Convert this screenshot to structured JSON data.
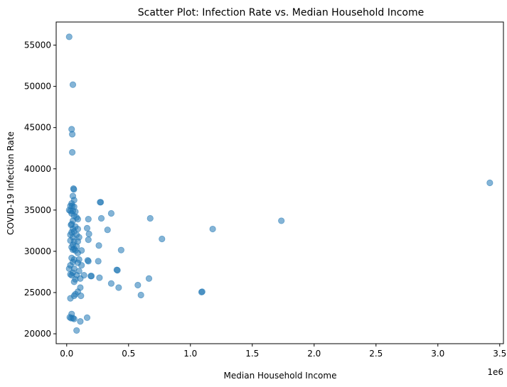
{
  "chart_data": {
    "type": "scatter",
    "title": "Scatter Plot: Infection Rate vs. Median Household Income",
    "xlabel": "Median Household Income",
    "ylabel": "COVID-19 Infection Rate",
    "x_offset_label": "1e6",
    "xlim": [
      -0.085,
      3.53
    ],
    "ylim": [
      18800,
      57800
    ],
    "x_ticks": [
      0.0,
      0.5,
      1.0,
      1.5,
      2.0,
      2.5,
      3.0,
      3.5
    ],
    "x_tick_labels": [
      "0.0",
      "0.5",
      "1.0",
      "1.5",
      "2.0",
      "2.5",
      "3.0",
      "3.5"
    ],
    "y_ticks": [
      20000,
      25000,
      30000,
      35000,
      40000,
      45000,
      50000,
      55000
    ],
    "y_tick_labels": [
      "20000",
      "25000",
      "30000",
      "35000",
      "40000",
      "45000",
      "50000",
      "55000"
    ],
    "grid": false,
    "marker_color": "#1f77b4",
    "marker_alpha": 0.55,
    "x_unit_multiplier": 1000000,
    "points": [
      [
        0.02,
        56000
      ],
      [
        0.05,
        50200
      ],
      [
        0.04,
        44800
      ],
      [
        0.045,
        44200
      ],
      [
        0.045,
        42000
      ],
      [
        0.055,
        37600
      ],
      [
        0.058,
        37500
      ],
      [
        0.05,
        36700
      ],
      [
        0.06,
        36200
      ],
      [
        0.04,
        35800
      ],
      [
        0.03,
        35500
      ],
      [
        0.045,
        35500
      ],
      [
        0.06,
        35400
      ],
      [
        0.02,
        35000
      ],
      [
        0.03,
        34900
      ],
      [
        0.05,
        34900
      ],
      [
        0.07,
        34800
      ],
      [
        0.04,
        34600
      ],
      [
        0.06,
        34300
      ],
      [
        0.08,
        34100
      ],
      [
        0.09,
        33900
      ],
      [
        0.05,
        33700
      ],
      [
        0.035,
        33200
      ],
      [
        0.04,
        33300
      ],
      [
        0.07,
        33000
      ],
      [
        0.05,
        32700
      ],
      [
        0.09,
        32700
      ],
      [
        0.04,
        32300
      ],
      [
        0.06,
        32400
      ],
      [
        0.03,
        32000
      ],
      [
        0.08,
        32000
      ],
      [
        0.05,
        31700
      ],
      [
        0.1,
        31700
      ],
      [
        0.03,
        31300
      ],
      [
        0.06,
        31200
      ],
      [
        0.09,
        31200
      ],
      [
        0.05,
        30800
      ],
      [
        0.04,
        30500
      ],
      [
        0.08,
        30600
      ],
      [
        0.06,
        30300
      ],
      [
        0.05,
        30200
      ],
      [
        0.07,
        30100
      ],
      [
        0.12,
        30100
      ],
      [
        0.09,
        29800
      ],
      [
        0.04,
        29200
      ],
      [
        0.06,
        29000
      ],
      [
        0.1,
        29000
      ],
      [
        0.05,
        28700
      ],
      [
        0.09,
        28600
      ],
      [
        0.03,
        28300
      ],
      [
        0.12,
        28300
      ],
      [
        0.02,
        27900
      ],
      [
        0.06,
        27900
      ],
      [
        0.1,
        27600
      ],
      [
        0.05,
        27400
      ],
      [
        0.03,
        27200
      ],
      [
        0.04,
        27100
      ],
      [
        0.08,
        27100
      ],
      [
        0.14,
        27100
      ],
      [
        0.07,
        26600
      ],
      [
        0.11,
        26700
      ],
      [
        0.06,
        26300
      ],
      [
        0.11,
        25600
      ],
      [
        0.09,
        25100
      ],
      [
        0.07,
        24800
      ],
      [
        0.06,
        24600
      ],
      [
        0.115,
        24600
      ],
      [
        0.03,
        24300
      ],
      [
        0.04,
        22400
      ],
      [
        0.025,
        22000
      ],
      [
        0.035,
        21900
      ],
      [
        0.05,
        21900
      ],
      [
        0.06,
        21800
      ],
      [
        0.11,
        21500
      ],
      [
        0.08,
        20400
      ],
      [
        0.175,
        33900
      ],
      [
        0.165,
        32800
      ],
      [
        0.18,
        32100
      ],
      [
        0.175,
        31400
      ],
      [
        0.17,
        28900
      ],
      [
        0.175,
        28800
      ],
      [
        0.195,
        27000
      ],
      [
        0.2,
        27000
      ],
      [
        0.165,
        21950
      ],
      [
        0.27,
        35950
      ],
      [
        0.275,
        35950
      ],
      [
        0.28,
        34000
      ],
      [
        0.26,
        30700
      ],
      [
        0.255,
        28800
      ],
      [
        0.265,
        26800
      ],
      [
        0.36,
        34600
      ],
      [
        0.33,
        32600
      ],
      [
        0.36,
        26100
      ],
      [
        0.41,
        27700
      ],
      [
        0.405,
        27750
      ],
      [
        0.44,
        30150
      ],
      [
        0.42,
        25600
      ],
      [
        0.575,
        25900
      ],
      [
        0.6,
        24700
      ],
      [
        0.665,
        26700
      ],
      [
        0.675,
        34000
      ],
      [
        0.77,
        31500
      ],
      [
        1.09,
        25050
      ],
      [
        1.095,
        25100
      ],
      [
        1.18,
        32700
      ],
      [
        1.735,
        33700
      ],
      [
        3.42,
        38300
      ]
    ]
  }
}
